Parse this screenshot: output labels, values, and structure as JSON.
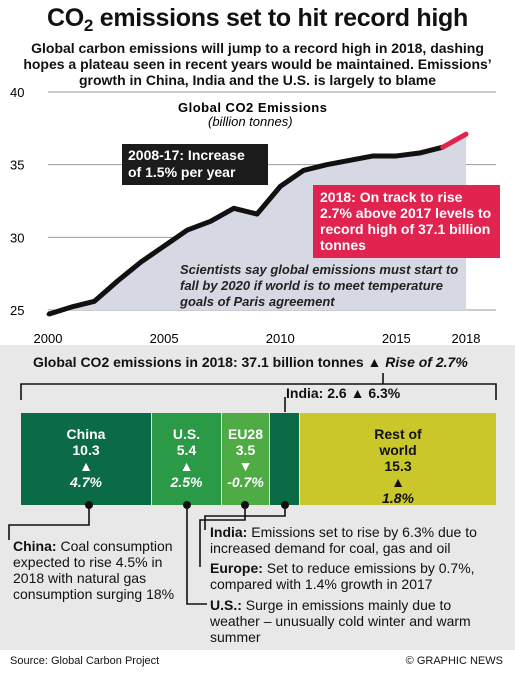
{
  "title": {
    "main": "CO",
    "sub": "2",
    "rest": " emissions set to hit record high"
  },
  "subtitle": "Global carbon emissions will jump to a record high in 2018, dashing hopes a plateau seen in recent years would be maintained. Emissions’ growth in China, India and the U.S. is largely to blame",
  "callouts": {
    "period": "2008-17: Increase of 1.5% per year",
    "forecast": "2018: On track to rise 2.7% above 2017 levels to record high of 37.1 billion tonnes",
    "scientists": "Scientists say global emissions must start to fall by 2020 if world is to meet temperature goals of Paris agreement"
  },
  "chart_data": [
    {
      "type": "area",
      "title": "Global CO2 Emissions",
      "subtitle": "(billion tonnes)",
      "x": [
        2000,
        2001,
        2002,
        2003,
        2004,
        2005,
        2006,
        2007,
        2008,
        2009,
        2010,
        2011,
        2012,
        2013,
        2014,
        2015,
        2016,
        2017,
        2018
      ],
      "series": [
        {
          "values": [
            24.7,
            25.2,
            25.6,
            27.0,
            28.3,
            29.4,
            30.5,
            31.1,
            32.0,
            31.6,
            33.5,
            34.6,
            35.0,
            35.3,
            35.6,
            35.6,
            35.8,
            36.2,
            37.1
          ]
        }
      ],
      "projection_from": 2017,
      "xticks": [
        "2000",
        "2005",
        "2010",
        "2015",
        "2018"
      ],
      "yticks": [
        "25",
        "30",
        "35",
        "40"
      ],
      "ylim": [
        25,
        40
      ],
      "xlim": [
        2000,
        2018
      ],
      "grid": true,
      "colors": {
        "line": "#111111",
        "projection": "#e0244f",
        "area": "#d6d9e4",
        "grid": "#9a9a9a"
      }
    },
    {
      "type": "bar",
      "title": "Global CO2 emissions in 2018: 37.1 billion tonnes",
      "title_rise": "▲ Rise of 2.7%",
      "orientation": "stacked-horizontal",
      "categories": [
        "China",
        "U.S.",
        "EU28",
        "India",
        "Rest of world"
      ],
      "values": [
        10.3,
        5.4,
        3.5,
        2.6,
        15.3
      ],
      "change": [
        "4.7%",
        "2.5%",
        "-0.7%",
        "6.3%",
        "1.8%"
      ],
      "arrows": [
        "▲",
        "▲",
        "▼",
        "▲",
        "▲"
      ],
      "india_label": "India: 2.6 ▲ 6.3%",
      "colors": {
        "china": "#0b6b46",
        "us": "#2a9a47",
        "eu": "#4fac45",
        "india": "#0b6b46",
        "rest": "#c9c72a"
      }
    }
  ],
  "notes": {
    "china_head": "China:",
    "china_text": " Coal consumption expected to rise 4.5% in 2018 with natural gas consumption surging 18%",
    "india_head": "India:",
    "india_text": " Emissions set to rise by 6.3% due to increased demand for coal, gas and oil",
    "eu_head": "Europe:",
    "eu_text": " Set to reduce emissions by 0.7%, compared with 1.4% growth in 2017",
    "us_head": "U.S.:",
    "us_text": " Surge in emissions mainly due to weather – unusually cold winter and warm summer"
  },
  "footer": {
    "source": "Source: Global Carbon Project",
    "credit": "© GRAPHIC NEWS"
  }
}
